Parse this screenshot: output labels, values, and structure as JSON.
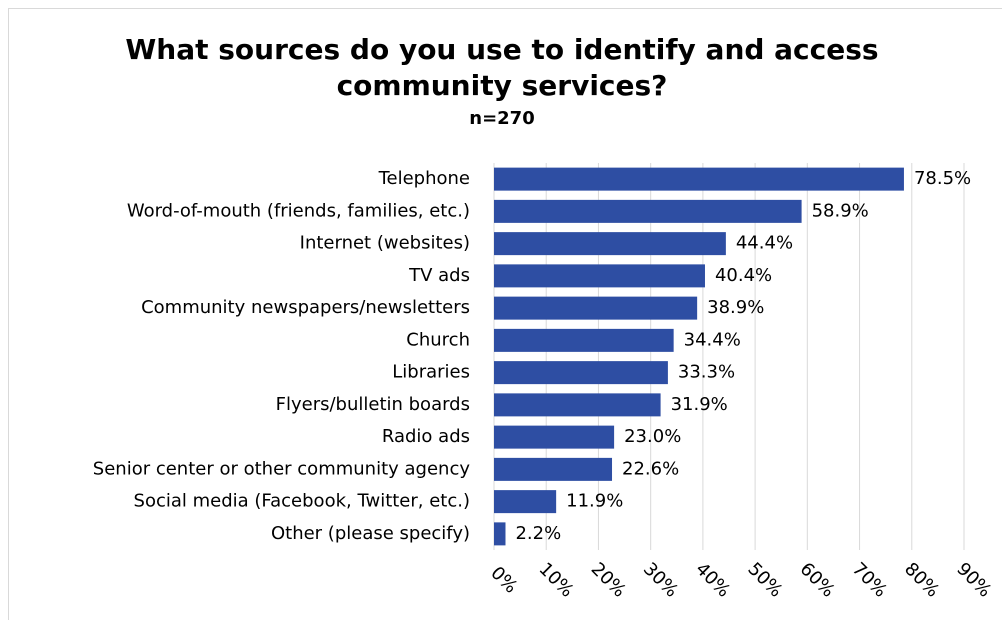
{
  "chart_data": {
    "type": "bar",
    "orientation": "horizontal",
    "title_line1": "What sources do you use to identify and access",
    "title_line2": "community services?",
    "subtitle": "n=270",
    "categories": [
      "Telephone",
      "Word-of-mouth (friends, families, etc.)",
      "Internet (websites)",
      "TV ads",
      "Community newspapers/newsletters",
      "Church",
      "Libraries",
      "Flyers/bulletin boards",
      "Radio ads",
      "Senior center or other community agency",
      "Social media (Facebook, Twitter, etc.)",
      "Other (please specify)"
    ],
    "values": [
      78.5,
      58.9,
      44.4,
      40.4,
      38.9,
      34.4,
      33.3,
      31.9,
      23.0,
      22.6,
      11.9,
      2.2
    ],
    "value_labels": [
      "78.5%",
      "58.9%",
      "44.4%",
      "40.4%",
      "38.9%",
      "34.4%",
      "33.3%",
      "31.9%",
      "23.0%",
      "22.6%",
      "11.9%",
      "2.2%"
    ],
    "xticks": [
      "0%",
      "10%",
      "20%",
      "30%",
      "40%",
      "50%",
      "60%",
      "70%",
      "80%",
      "90%"
    ],
    "xlim": [
      0,
      90
    ],
    "grid": "vertical",
    "legend": "none",
    "bar_color": "#2e4ea3",
    "grid_color": "#d9d9d9"
  }
}
